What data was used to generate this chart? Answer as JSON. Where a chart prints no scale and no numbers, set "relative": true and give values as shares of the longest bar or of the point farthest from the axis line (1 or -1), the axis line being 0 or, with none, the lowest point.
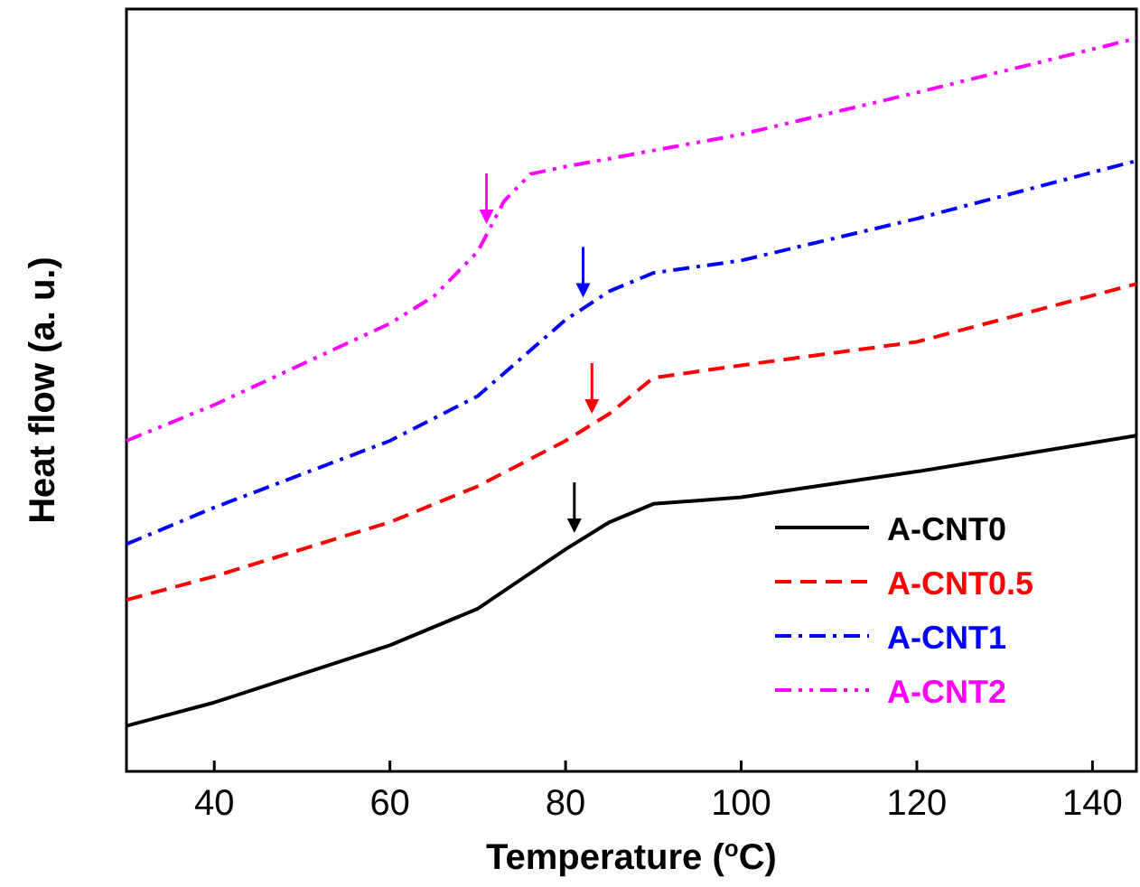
{
  "chart_data": {
    "type": "line",
    "relative": true,
    "xlabel": "Temperature ($^{o}$C)",
    "ylabel": "Heat flow (a. u.)",
    "xlim": [
      30,
      145
    ],
    "xticks": [
      40,
      60,
      80,
      100,
      120,
      140
    ],
    "legend": "bottom right",
    "grid": false,
    "marker": "none",
    "x": [
      30,
      40,
      60,
      70,
      80,
      85,
      90,
      100,
      120,
      145
    ],
    "series": [
      {
        "name": "A-CNT0",
        "color": "#000000",
        "line_style": "solid",
        "values": [
          0.062,
          0.094,
          0.172,
          0.222,
          0.303,
          0.34,
          0.365,
          0.374,
          0.409,
          0.458
        ]
      },
      {
        "name": "A-CNT0.5",
        "color": "#ff0000",
        "line_style": "dashed",
        "values": [
          0.234,
          0.266,
          0.34,
          0.389,
          0.451,
          0.488,
          0.537,
          0.554,
          0.586,
          0.665
        ]
      },
      {
        "name": "A-CNT1",
        "color": "#0000ff",
        "line_style": "dashdot",
        "values": [
          0.31,
          0.36,
          0.451,
          0.512,
          0.616,
          0.655,
          0.68,
          0.697,
          0.754,
          0.833
        ]
      },
      {
        "name": "A-CNT2",
        "color": "#ff00ff",
        "line_style": "dashdotdot",
        "x": [
          30,
          40,
          60,
          65,
          70,
          73,
          76,
          80,
          100,
          120,
          145
        ],
        "values": [
          0.451,
          0.5,
          0.611,
          0.648,
          0.709,
          0.778,
          0.815,
          0.825,
          0.869,
          0.926,
          1
        ]
      }
    ]
  }
}
